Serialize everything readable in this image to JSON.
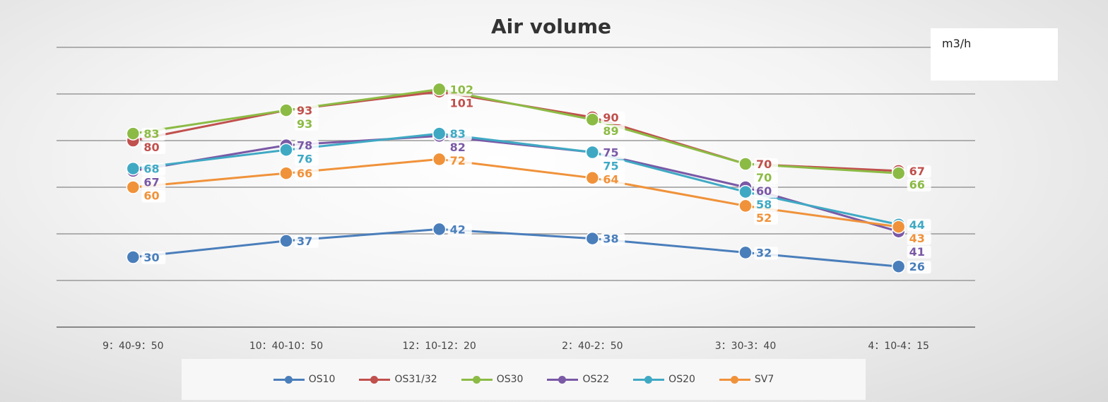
{
  "chart_data": {
    "type": "line",
    "title": "Air volume",
    "unit_label": "m3/h",
    "categories": [
      "9：40-9：50",
      "10：40-10：50",
      "12：10-12：20",
      "2：40-2：50",
      "3：30-3：40",
      "4：10-4：15"
    ],
    "ylim": [
      0,
      120
    ],
    "grid": true,
    "legend_position": "bottom",
    "series": [
      {
        "name": "OS10",
        "color": "#4a7ebb",
        "values": [
          30,
          37,
          42,
          38,
          32,
          26
        ]
      },
      {
        "name": "OS31/32",
        "color": "#c0504d",
        "values": [
          80,
          93,
          101,
          90,
          70,
          67
        ]
      },
      {
        "name": "OS30",
        "color": "#8cbb45",
        "values": [
          83,
          93,
          102,
          89,
          70,
          66
        ]
      },
      {
        "name": "OS22",
        "color": "#7a59a6",
        "values": [
          67,
          78,
          82,
          75,
          60,
          41
        ]
      },
      {
        "name": "OS20",
        "color": "#3fa9c4",
        "values": [
          68,
          76,
          83,
          75,
          58,
          44
        ]
      },
      {
        "name": "SV7",
        "color": "#f0923a",
        "values": [
          60,
          66,
          72,
          64,
          52,
          43
        ]
      }
    ]
  }
}
